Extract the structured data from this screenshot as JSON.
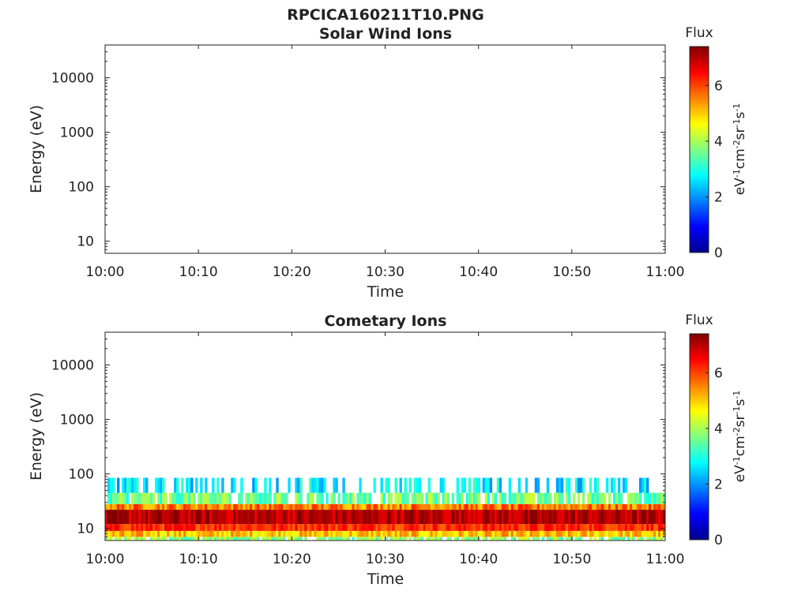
{
  "figure_title": "RPCICA160211T10.PNG",
  "colors": {
    "jet": [
      "#00008f",
      "#0000ff",
      "#0080ff",
      "#00ffff",
      "#80ff80",
      "#ffff00",
      "#ff8000",
      "#ff0000",
      "#800000"
    ]
  },
  "chart_data": [
    {
      "type": "heatmap",
      "title": "Solar Wind Ions",
      "xlabel": "Time",
      "ylabel": "Energy (eV)",
      "x_ticks": [
        "10:00",
        "10:10",
        "10:20",
        "10:30",
        "10:40",
        "10:50",
        "11:00"
      ],
      "xlim": [
        "10:00",
        "11:00"
      ],
      "y_scale": "log",
      "y_ticks": [
        "10",
        "100",
        "1000",
        "10000"
      ],
      "ylim": [
        6,
        40000
      ],
      "colorbar": {
        "label": "Flux",
        "unit_label": "eV-1cm-2sr-1s-1",
        "range": [
          0,
          7.4
        ],
        "ticks": [
          "0",
          "2",
          "4",
          "6"
        ],
        "colormap": "jet"
      },
      "data_present": false,
      "bands": []
    },
    {
      "type": "heatmap",
      "title": "Cometary Ions",
      "xlabel": "Time",
      "ylabel": "Energy (eV)",
      "x_ticks": [
        "10:00",
        "10:10",
        "10:20",
        "10:30",
        "10:40",
        "10:50",
        "11:00"
      ],
      "xlim": [
        "10:00",
        "11:00"
      ],
      "y_scale": "log",
      "y_ticks": [
        "10",
        "100",
        "1000",
        "10000"
      ],
      "ylim": [
        6,
        40000
      ],
      "colorbar": {
        "label": "Flux",
        "unit_label": "eV-1cm-2sr-1s-1",
        "range": [
          0,
          7.4
        ],
        "ticks": [
          "0",
          "2",
          "4",
          "6"
        ],
        "colormap": "jet"
      },
      "data_present": true,
      "bands": [
        {
          "energy_range_eV": [
            6,
            7
          ],
          "flux": 3.8
        },
        {
          "energy_range_eV": [
            7,
            9
          ],
          "flux": 5.0
        },
        {
          "energy_range_eV": [
            9,
            12
          ],
          "flux": 6.2
        },
        {
          "energy_range_eV": [
            12,
            22
          ],
          "flux": 7.0
        },
        {
          "energy_range_eV": [
            22,
            28
          ],
          "flux": 5.6
        },
        {
          "energy_range_eV": [
            28,
            45
          ],
          "flux": 3.6
        },
        {
          "energy_range_eV": [
            45,
            85
          ],
          "flux": 2.6
        }
      ]
    }
  ]
}
